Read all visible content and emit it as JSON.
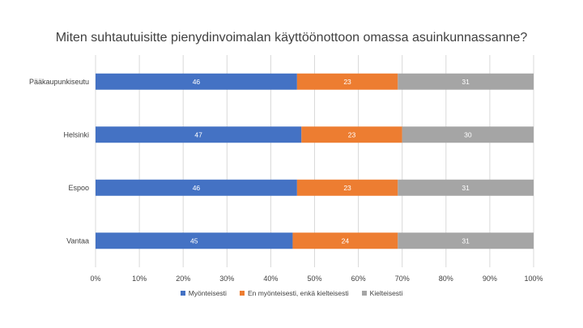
{
  "chart_data": {
    "type": "bar",
    "orientation": "horizontal",
    "stacked": true,
    "percent_stacked": true,
    "title": "Miten suhtautuisitte pienydinvoimalan käyttöönottoon omassa asuinkunnassanne?",
    "categories": [
      "Pääkaupunkiseutu",
      "Helsinki",
      "Espoo",
      "Vantaa"
    ],
    "series": [
      {
        "name": "Myönteisesti",
        "color": "#4472C4",
        "values": [
          46,
          47,
          46,
          45
        ]
      },
      {
        "name": "En myönteisesti, enkä kielteisesti",
        "color": "#ED7D31",
        "values": [
          23,
          23,
          23,
          24
        ]
      },
      {
        "name": "Kielteisesti",
        "color": "#A5A5A5",
        "values": [
          31,
          30,
          31,
          31
        ]
      }
    ],
    "xlim": [
      0,
      100
    ],
    "x_ticks": [
      "0%",
      "10%",
      "20%",
      "30%",
      "40%",
      "50%",
      "60%",
      "70%",
      "80%",
      "90%",
      "100%"
    ],
    "grid": true,
    "legend_position": "bottom"
  }
}
